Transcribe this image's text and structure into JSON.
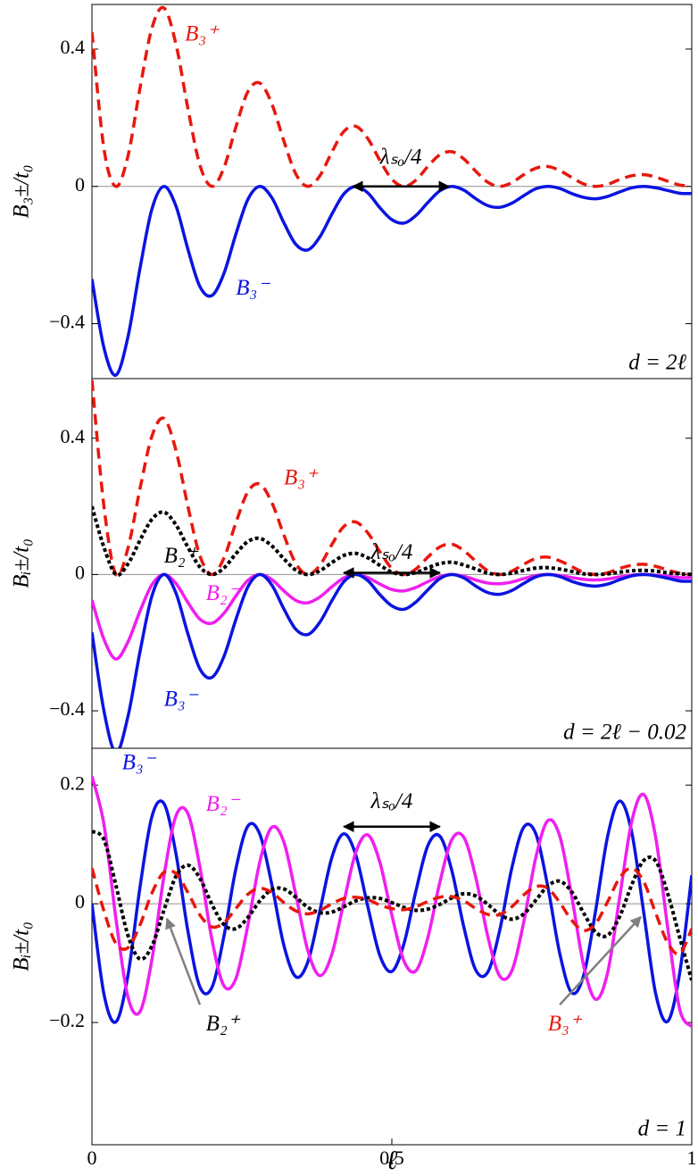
{
  "chart_data": [
    {
      "type": "line",
      "ylabel": "B₃±/t₀",
      "note": "d = 2ℓ",
      "annotation": "λₛₒ/4",
      "zero_line": true,
      "xlim": [
        0,
        1
      ],
      "ylim": [
        -0.56,
        0.53
      ],
      "yticks": [
        0.4,
        0,
        {
          "value": -0.4,
          "label": "−0.4"
        }
      ],
      "x": [
        0,
        0.02,
        0.04,
        0.06,
        0.08,
        0.1,
        0.12,
        0.14,
        0.16,
        0.18,
        0.2,
        0.22,
        0.24,
        0.26,
        0.28,
        0.3,
        0.32,
        0.34,
        0.36,
        0.38,
        0.4,
        0.42,
        0.44,
        0.46,
        0.48,
        0.5,
        0.52,
        0.54,
        0.56,
        0.58,
        0.6,
        0.62,
        0.64,
        0.66,
        0.68,
        0.7,
        0.72,
        0.74,
        0.76,
        0.78,
        0.8,
        0.82,
        0.84,
        0.86,
        0.88,
        0.9,
        0.92,
        0.94,
        0.96,
        0.98,
        1
      ],
      "series": [
        {
          "name": "B₃⁺",
          "color": "#e8170d",
          "style": "dashed",
          "values": [
            0.45,
            0.11,
            0,
            0.088,
            0.285,
            0.461,
            0.52,
            0.415,
            0.227,
            0.062,
            0,
            0.054,
            0.173,
            0.276,
            0.301,
            0.24,
            0.132,
            0.036,
            0,
            0.031,
            0.1,
            0.16,
            0.175,
            0.139,
            0.076,
            0.021,
            0,
            0.018,
            0.058,
            0.092,
            0.101,
            0.08,
            0.044,
            0.012,
            0,
            0.011,
            0.034,
            0.053,
            0.058,
            0.046,
            0.026,
            0.007,
            0,
            0.006,
            0.02,
            0.031,
            0.034,
            0.027,
            0.015,
            0.004,
            0
          ]
        },
        {
          "name": "B₃⁻",
          "color": "#0a14e0",
          "style": "solid",
          "values": [
            -0.27,
            -0.47,
            -0.55,
            -0.439,
            -0.24,
            -0.066,
            0,
            -0.057,
            -0.183,
            -0.292,
            -0.318,
            -0.254,
            -0.139,
            -0.038,
            0,
            -0.033,
            -0.106,
            -0.169,
            -0.185,
            -0.147,
            -0.081,
            -0.022,
            0,
            -0.019,
            -0.062,
            -0.097,
            -0.107,
            -0.085,
            -0.047,
            -0.013,
            0,
            -0.011,
            -0.036,
            -0.056,
            -0.061,
            -0.049,
            -0.027,
            -0.007,
            0,
            -0.006,
            -0.021,
            -0.032,
            -0.036,
            -0.029,
            -0.016,
            -0.004,
            0,
            -0.004,
            -0.012,
            -0.02,
            -0.021
          ]
        }
      ]
    },
    {
      "type": "line",
      "ylabel": "Bᵢ±/t₀",
      "note": "d = 2ℓ − 0.02",
      "annotation": "λₛₒ/4",
      "zero_line": true,
      "xlim": [
        0,
        1
      ],
      "ylim": [
        -0.51,
        0.575
      ],
      "yticks": [
        0.4,
        0,
        {
          "value": -0.4,
          "label": "−0.4"
        }
      ],
      "x": [
        0,
        0.02,
        0.04,
        0.06,
        0.08,
        0.1,
        0.12,
        0.14,
        0.16,
        0.18,
        0.2,
        0.22,
        0.24,
        0.26,
        0.28,
        0.3,
        0.32,
        0.34,
        0.36,
        0.38,
        0.4,
        0.42,
        0.44,
        0.46,
        0.48,
        0.5,
        0.52,
        0.54,
        0.56,
        0.58,
        0.6,
        0.62,
        0.64,
        0.66,
        0.68,
        0.7,
        0.72,
        0.74,
        0.76,
        0.78,
        0.8,
        0.82,
        0.84,
        0.86,
        0.88,
        0.9,
        0.92,
        0.94,
        0.96,
        0.98,
        1
      ],
      "series": [
        {
          "name": "B₃⁺",
          "color": "#e8170d",
          "style": "dashed",
          "values": [
            0.57,
            0.2,
            0,
            0.077,
            0.251,
            0.406,
            0.458,
            0.365,
            0.2,
            0.055,
            0,
            0.048,
            0.152,
            0.243,
            0.265,
            0.211,
            0.116,
            0.032,
            0,
            0.027,
            0.088,
            0.141,
            0.154,
            0.122,
            0.067,
            0.018,
            0,
            0.016,
            0.051,
            0.081,
            0.089,
            0.07,
            0.039,
            0.011,
            0,
            0.01,
            0.03,
            0.047,
            0.051,
            0.04,
            0.023,
            0.006,
            0,
            0.005,
            0.018,
            0.027,
            0.03,
            0.024,
            0.013,
            0.004,
            0
          ]
        },
        {
          "name": "B₂⁺",
          "color": "#000000",
          "style": "dotted",
          "values": [
            0.2,
            0.08,
            0,
            0.031,
            0.1,
            0.162,
            0.183,
            0.146,
            0.08,
            0.022,
            0,
            0.019,
            0.061,
            0.097,
            0.106,
            0.084,
            0.046,
            0.013,
            0,
            0.011,
            0.035,
            0.056,
            0.062,
            0.049,
            0.027,
            0.007,
            0,
            0.006,
            0.02,
            0.032,
            0.036,
            0.028,
            0.016,
            0.004,
            0,
            0.004,
            0.012,
            0.019,
            0.02,
            0.016,
            0.009,
            0.002,
            0,
            0.002,
            0.007,
            0.011,
            0.012,
            0.01,
            0.005,
            0.002,
            0
          ]
        },
        {
          "name": "B₂⁻",
          "color": "#f01ef0",
          "style": "solid",
          "values": [
            -0.075,
            -0.19,
            -0.248,
            -0.198,
            -0.108,
            -0.03,
            0,
            -0.026,
            -0.082,
            -0.131,
            -0.143,
            -0.114,
            -0.063,
            -0.017,
            0,
            -0.015,
            -0.048,
            -0.076,
            -0.083,
            -0.066,
            -0.036,
            -0.01,
            0,
            -0.009,
            -0.028,
            -0.044,
            -0.048,
            -0.038,
            -0.021,
            -0.006,
            0,
            -0.005,
            -0.016,
            -0.025,
            -0.027,
            -0.022,
            -0.012,
            -0.003,
            0,
            -0.003,
            -0.009,
            -0.014,
            -0.016,
            -0.013,
            -0.007,
            -0.002,
            0,
            -0.002,
            -0.005,
            -0.009,
            -0.009
          ]
        },
        {
          "name": "B₃⁻",
          "color": "#0a14e0",
          "style": "solid",
          "values": [
            -0.17,
            -0.4,
            -0.523,
            -0.417,
            -0.228,
            -0.063,
            0,
            -0.054,
            -0.174,
            -0.277,
            -0.302,
            -0.241,
            -0.132,
            -0.036,
            0,
            -0.031,
            -0.101,
            -0.161,
            -0.176,
            -0.14,
            -0.077,
            -0.021,
            0,
            -0.018,
            -0.059,
            -0.092,
            -0.102,
            -0.081,
            -0.045,
            -0.012,
            0,
            -0.01,
            -0.034,
            -0.053,
            -0.058,
            -0.047,
            -0.026,
            -0.007,
            0,
            -0.006,
            -0.02,
            -0.03,
            -0.034,
            -0.028,
            -0.015,
            -0.004,
            0,
            -0.004,
            -0.011,
            -0.019,
            -0.02
          ]
        }
      ]
    },
    {
      "type": "line",
      "ylabel": "Bᵢ±/t₀",
      "xlabel": "ℓ",
      "note": "d = 1",
      "annotation": "λₛₒ/4",
      "zero_line": true,
      "xlim": [
        0,
        1
      ],
      "ylim": [
        -0.406,
        0.262
      ],
      "xticks": [
        0,
        0.5,
        1
      ],
      "yticks": [
        0.2,
        0,
        {
          "value": -0.2,
          "label": "−0.2"
        }
      ],
      "x": [
        0,
        0.02,
        0.04,
        0.06,
        0.08,
        0.1,
        0.12,
        0.14,
        0.16,
        0.18,
        0.2,
        0.22,
        0.24,
        0.26,
        0.28,
        0.3,
        0.32,
        0.34,
        0.36,
        0.38,
        0.4,
        0.42,
        0.44,
        0.46,
        0.48,
        0.5,
        0.52,
        0.54,
        0.56,
        0.58,
        0.6,
        0.62,
        0.64,
        0.66,
        0.68,
        0.7,
        0.72,
        0.74,
        0.76,
        0.78,
        0.8,
        0.82,
        0.84,
        0.86,
        0.88,
        0.9,
        0.92,
        0.94,
        0.96,
        0.98,
        1
      ],
      "series": [
        {
          "name": "B₃⁻",
          "color": "#0a14e0",
          "style": "solid",
          "values": [
            0,
            -0.152,
            -0.199,
            -0.121,
            0.027,
            0.147,
            0.169,
            0.085,
            -0.046,
            -0.14,
            -0.141,
            -0.055,
            0.059,
            0.131,
            0.117,
            0.032,
            -0.07,
            -0.123,
            -0.098,
            -0.012,
            0.078,
            0.118,
            0.082,
            -0.005,
            -0.087,
            -0.114,
            -0.068,
            0.021,
            0.098,
            0.114,
            0.056,
            -0.039,
            -0.112,
            -0.115,
            -0.044,
            0.06,
            0.129,
            0.118,
            0.029,
            -0.084,
            -0.15,
            -0.12,
            -0.01,
            0.115,
            0.173,
            0.12,
            -0.015,
            -0.152,
            -0.198,
            -0.116,
            0.048
          ]
        },
        {
          "name": "B₂⁻",
          "color": "#f01ef0",
          "style": "solid",
          "values": [
            0.215,
            0.134,
            -0.025,
            -0.157,
            -0.182,
            -0.094,
            0.046,
            0.148,
            0.152,
            0.062,
            -0.06,
            -0.138,
            -0.126,
            -0.036,
            0.071,
            0.129,
            0.104,
            0.015,
            -0.079,
            -0.121,
            -0.085,
            0.003,
            0.087,
            0.116,
            0.07,
            -0.019,
            -0.096,
            -0.113,
            -0.057,
            0.036,
            0.108,
            0.112,
            0.044,
            -0.055,
            -0.122,
            -0.113,
            -0.03,
            0.078,
            0.14,
            0.114,
            0.012,
            -0.105,
            -0.161,
            -0.115,
            0.012,
            0.139,
            0.184,
            0.111,
            -0.041,
            -0.178,
            -0.207
          ]
        },
        {
          "name": "B₂⁺",
          "color": "#000000",
          "style": "dotted",
          "values": [
            0.122,
            0.108,
            0.031,
            -0.053,
            -0.093,
            -0.071,
            -0.011,
            0.046,
            0.065,
            0.043,
            -0.001,
            -0.035,
            -0.042,
            -0.023,
            0.005,
            0.024,
            0.025,
            0.011,
            -0.006,
            -0.015,
            -0.014,
            -0.005,
            0.005,
            0.01,
            0.009,
            0.002,
            -0.006,
            -0.011,
            -0.009,
            -0.001,
            0.01,
            0.017,
            0.013,
            -0.001,
            -0.018,
            -0.026,
            -0.017,
            0.006,
            0.03,
            0.038,
            0.02,
            -0.016,
            -0.048,
            -0.053,
            -0.021,
            0.032,
            0.073,
            0.072,
            0.017,
            -0.057,
            -0.129
          ]
        },
        {
          "name": "B₃⁺",
          "color": "#e8170d",
          "style": "dashed",
          "values": [
            0.06,
            -0.012,
            -0.067,
            -0.074,
            -0.036,
            0.018,
            0.053,
            0.051,
            0.019,
            -0.019,
            -0.039,
            -0.032,
            -0.008,
            0.016,
            0.026,
            0.019,
            0.002,
            -0.012,
            -0.017,
            -0.011,
            0,
            0.009,
            0.011,
            0.007,
            -0.002,
            -0.008,
            -0.01,
            -0.005,
            0.004,
            0.011,
            0.012,
            0.005,
            -0.008,
            -0.018,
            -0.018,
            -0.005,
            0.015,
            0.029,
            0.026,
            0.002,
            -0.028,
            -0.045,
            -0.033,
            0.004,
            0.044,
            0.06,
            0.037,
            -0.016,
            -0.066,
            -0.084,
            -0.042
          ]
        }
      ]
    }
  ]
}
